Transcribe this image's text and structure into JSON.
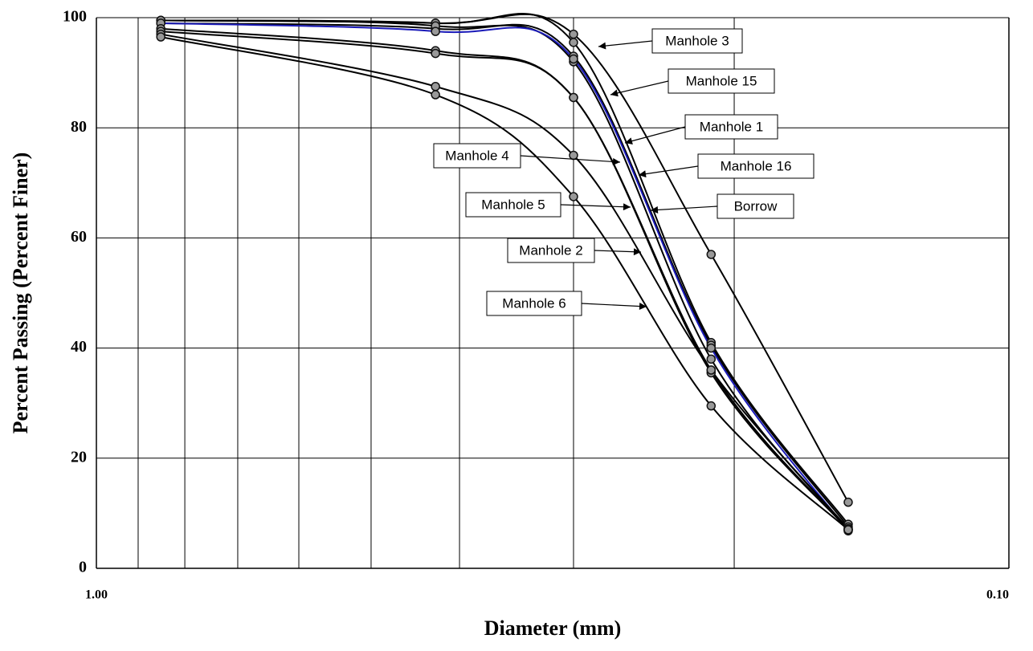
{
  "chart_data": {
    "type": "line",
    "xlabel": "Diameter (mm)",
    "ylabel": "Percent Passing (Percent Finer)",
    "xscale": "log",
    "xlim": [
      1.0,
      0.1
    ],
    "xticks": [
      {
        "value": 1.0,
        "label": "1.00"
      },
      {
        "value": 0.1,
        "label": "0.10"
      }
    ],
    "xminor": [
      0.9,
      0.8,
      0.7,
      0.6,
      0.5,
      0.4,
      0.3,
      0.2
    ],
    "ylim": [
      0,
      100
    ],
    "yticks": [
      0,
      20,
      40,
      60,
      80,
      100
    ],
    "grid": true,
    "x": [
      0.85,
      0.425,
      0.3,
      0.212,
      0.15
    ],
    "series": [
      {
        "name": "Manhole 3",
        "color": "#000000",
        "values": [
          99.5,
          99,
          97,
          57,
          12
        ]
      },
      {
        "name": "Manhole 15",
        "color": "#000000",
        "values": [
          99.5,
          99,
          95.5,
          41,
          8
        ]
      },
      {
        "name": "Manhole 1",
        "color": "#000000",
        "values": [
          99,
          98,
          93,
          40.5,
          7.5
        ]
      },
      {
        "name": "Manhole 16",
        "color": "#000000",
        "values": [
          99.5,
          98.5,
          92,
          38,
          7
        ]
      },
      {
        "name": "Borrow",
        "color": "#1a1ab8",
        "values": [
          99,
          97.5,
          92.5,
          40,
          6.8
        ]
      },
      {
        "name": "Manhole 4",
        "color": "#000000",
        "values": [
          98,
          94,
          85.5,
          36,
          7
        ]
      },
      {
        "name": "Manhole 5",
        "color": "#000000",
        "values": [
          97.5,
          93.5,
          85.5,
          35.5,
          7
        ]
      },
      {
        "name": "Manhole 2",
        "color": "#000000",
        "values": [
          97,
          87.5,
          75,
          36,
          7.2
        ]
      },
      {
        "name": "Manhole 6",
        "color": "#000000",
        "values": [
          96.5,
          86,
          67.5,
          29.5,
          7
        ]
      }
    ]
  }
}
